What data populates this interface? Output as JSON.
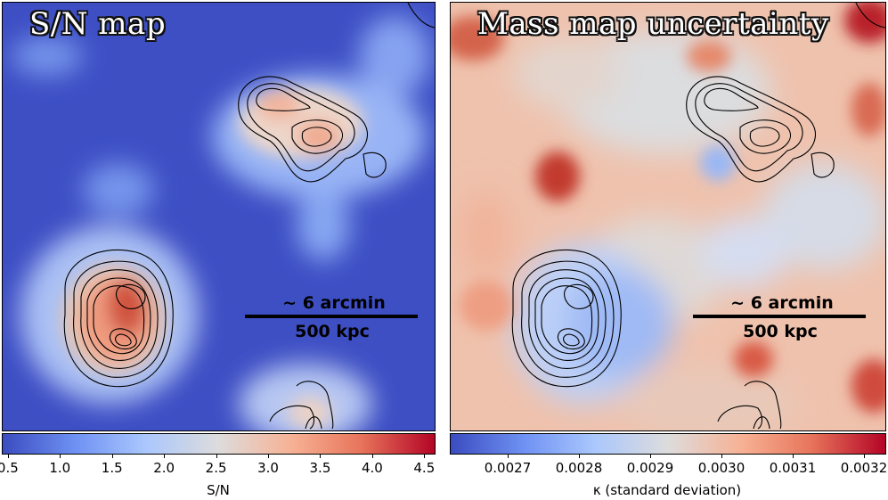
{
  "panels": [
    {
      "title": "S/N map",
      "scale_top": "~ 6 arcmin",
      "scale_bottom": "500 kpc",
      "colorbar": {
        "label": "S/N",
        "ticks": [
          "0.5",
          "1.0",
          "1.5",
          "2.0",
          "2.5",
          "3.0",
          "3.5",
          "4.0",
          "4.5"
        ],
        "range": [
          0.45,
          4.6
        ],
        "tick_values": [
          0.5,
          1.0,
          1.5,
          2.0,
          2.5,
          3.0,
          3.5,
          4.0,
          4.5
        ],
        "colormap": [
          "#3b4cc0",
          "#6f92f3",
          "#aac7fd",
          "#dddcdc",
          "#f7b194",
          "#e7745b",
          "#b40426"
        ]
      }
    },
    {
      "title": "Mass map uncertainty",
      "scale_top": "~ 6 arcmin",
      "scale_bottom": "500 kpc",
      "colorbar": {
        "label": "κ (standard deviation)",
        "ticks": [
          "0.0027",
          "0.0028",
          "0.0029",
          "0.0030",
          "0.0031",
          "0.0032"
        ],
        "range": [
          0.00262,
          0.00323
        ],
        "tick_values": [
          0.0027,
          0.0028,
          0.0029,
          0.003,
          0.0031,
          0.0032
        ],
        "colormap": [
          "#3b4cc0",
          "#6f92f3",
          "#aac7fd",
          "#dddcdc",
          "#f7b194",
          "#e7745b",
          "#b40426"
        ]
      }
    }
  ]
}
